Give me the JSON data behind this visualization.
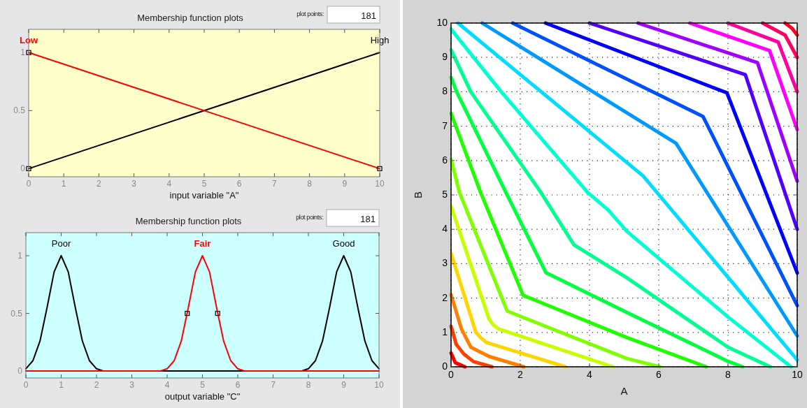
{
  "chart_data": [
    {
      "type": "line",
      "title": "Membership function plots",
      "xlabel": "input variable \"A\"",
      "annotations": [
        "plot points:",
        "181"
      ],
      "xlim": [
        0,
        10
      ],
      "ylim": [
        -0.07,
        1.2
      ],
      "xticks": [
        0,
        1,
        2,
        3,
        4,
        5,
        6,
        7,
        8,
        9,
        10
      ],
      "yticks": [
        0,
        0.5,
        1
      ],
      "grid": false,
      "line_style": "solid",
      "series": [
        {
          "name": "High",
          "color": "#000000",
          "x": [
            0,
            10
          ],
          "values": [
            0,
            1
          ]
        },
        {
          "name": "Low",
          "color": "#ff0000",
          "x": [
            0,
            10
          ],
          "values": [
            1,
            0
          ]
        },
        {
          "type": "scatter",
          "marker": "square",
          "color": "#000000",
          "x": [
            0,
            0,
            10
          ],
          "values": [
            1,
            0,
            0
          ]
        }
      ]
    },
    {
      "type": "line",
      "title": "Membership function plots",
      "xlabel": "output variable \"C\"",
      "annotations": [
        "plot points:",
        "181"
      ],
      "xlim": [
        0,
        10
      ],
      "ylim": [
        -0.06,
        1.2
      ],
      "xticks": [
        0,
        1,
        2,
        3,
        4,
        5,
        6,
        7,
        8,
        9,
        10
      ],
      "yticks": [
        0,
        0.5,
        1
      ],
      "grid": false,
      "line_style": "solid",
      "series": [
        {
          "name": "Poor",
          "color": "#000000",
          "x": [
            0,
            0.2,
            0.4,
            0.6,
            0.8,
            1,
            1.2,
            1.4,
            1.6,
            1.8,
            2,
            2.2,
            10
          ],
          "values": [
            0.02,
            0.09,
            0.26,
            0.55,
            0.86,
            1,
            0.86,
            0.55,
            0.26,
            0.09,
            0.02,
            0,
            0
          ]
        },
        {
          "name": "Good",
          "color": "#000000",
          "x": [
            0,
            7.8,
            8,
            8.2,
            8.4,
            8.6,
            8.8,
            9,
            9.2,
            9.4,
            9.6,
            9.8,
            10
          ],
          "values": [
            0,
            0,
            0.02,
            0.09,
            0.26,
            0.55,
            0.86,
            1,
            0.86,
            0.55,
            0.26,
            0.09,
            0.02
          ]
        },
        {
          "name": "Fair",
          "color": "#ff0000",
          "x": [
            0,
            3.8,
            4,
            4.2,
            4.4,
            4.6,
            4.8,
            5,
            5.2,
            5.4,
            5.6,
            5.8,
            6,
            6.2,
            10
          ],
          "values": [
            0,
            0,
            0.02,
            0.09,
            0.26,
            0.55,
            0.86,
            1,
            0.86,
            0.55,
            0.26,
            0.09,
            0.02,
            0,
            0
          ]
        },
        {
          "type": "scatter",
          "marker": "square",
          "color": "#000000",
          "x": [
            4.57,
            5.43
          ],
          "values": [
            0.5,
            0.5
          ]
        }
      ]
    },
    {
      "type": "line",
      "xlabel": "A",
      "ylabel": "B",
      "xlim": [
        0,
        10
      ],
      "ylim": [
        0,
        10
      ],
      "xticks": [
        0,
        2,
        4,
        6,
        8,
        10
      ],
      "yticks": [
        0,
        1,
        2,
        3,
        4,
        5,
        6,
        7,
        8,
        9,
        10
      ],
      "grid": true,
      "line_style": "solid",
      "series": [
        {
          "color": "#ff0000",
          "x": [
            0,
            0.12,
            0.4
          ],
          "values": [
            0.4,
            0.12,
            0
          ]
        },
        {
          "color": "#ff4000",
          "x": [
            0,
            0.15,
            0.37,
            0.65,
            1.18
          ],
          "values": [
            1.18,
            0.65,
            0.37,
            0.15,
            0
          ]
        },
        {
          "color": "#ff8000",
          "x": [
            0,
            0.3,
            0.57,
            1.1,
            2.1
          ],
          "values": [
            2.1,
            1.1,
            0.57,
            0.3,
            0
          ]
        },
        {
          "color": "#ffd500",
          "x": [
            0,
            0.71,
            0.85,
            1.02,
            3.3
          ],
          "values": [
            3.3,
            1.02,
            0.85,
            0.71,
            0
          ]
        },
        {
          "color": "#c8ff00",
          "x": [
            0,
            1.1,
            1.22,
            1.38,
            4.67
          ],
          "values": [
            4.67,
            1.38,
            1.22,
            1.1,
            0
          ]
        },
        {
          "color": "#80ff00",
          "x": [
            0,
            0.24,
            1.62,
            5.08,
            6.03
          ],
          "values": [
            6.03,
            5.08,
            1.62,
            0.24,
            0
          ]
        },
        {
          "color": "#20ff00",
          "x": [
            0,
            0.85,
            2.08,
            5.08,
            7.37
          ],
          "values": [
            7.37,
            5.08,
            2.08,
            0.85,
            0
          ]
        },
        {
          "color": "#00ff40",
          "x": [
            0,
            0.16,
            1.58,
            2.74,
            5.08,
            8,
            8.42
          ],
          "values": [
            8.42,
            8,
            5.08,
            2.74,
            1.58,
            0.16,
            0
          ]
        },
        {
          "color": "#00ff90",
          "x": [
            0,
            0.57,
            2.59,
            3.55,
            5.08,
            8,
            9.22
          ],
          "values": [
            9.22,
            8,
            5.08,
            3.55,
            2.59,
            0.57,
            0
          ]
        },
        {
          "color": "#00ffd0",
          "x": [
            0,
            1.45,
            3.94,
            4.55,
            5.08,
            8,
            9.82
          ],
          "values": [
            9.82,
            8,
            5.08,
            4.55,
            3.94,
            1.45,
            0
          ]
        },
        {
          "color": "#00ddff",
          "x": [
            0.2,
            5.55,
            10
          ],
          "values": [
            10,
            5.55,
            0.2
          ]
        },
        {
          "color": "#0099ff",
          "x": [
            0.9,
            6.5,
            10
          ],
          "values": [
            10,
            6.5,
            0.9
          ]
        },
        {
          "color": "#0050ff",
          "x": [
            1.78,
            7.28,
            10
          ],
          "values": [
            10,
            7.28,
            1.78
          ]
        },
        {
          "color": "#0000ff",
          "x": [
            2.73,
            7.97,
            10
          ],
          "values": [
            10,
            7.97,
            2.73
          ]
        },
        {
          "color": "#5000ff",
          "x": [
            4,
            8.5,
            10
          ],
          "values": [
            10,
            8.5,
            4
          ]
        },
        {
          "color": "#a000ff",
          "x": [
            5.4,
            8.85,
            10
          ],
          "values": [
            10,
            8.85,
            5.4
          ]
        },
        {
          "color": "#ff00ff",
          "x": [
            6.9,
            9.2,
            10
          ],
          "values": [
            10,
            9.2,
            6.9
          ]
        },
        {
          "color": "#ff00a0",
          "x": [
            8,
            9.45,
            10
          ],
          "values": [
            10,
            9.45,
            8
          ]
        },
        {
          "color": "#ff0060",
          "x": [
            9,
            9.65,
            10
          ],
          "values": [
            10,
            9.65,
            9
          ]
        },
        {
          "color": "#ff0020",
          "x": [
            9.65,
            9.85,
            10
          ],
          "values": [
            10,
            9.85,
            9.65
          ]
        }
      ]
    }
  ]
}
